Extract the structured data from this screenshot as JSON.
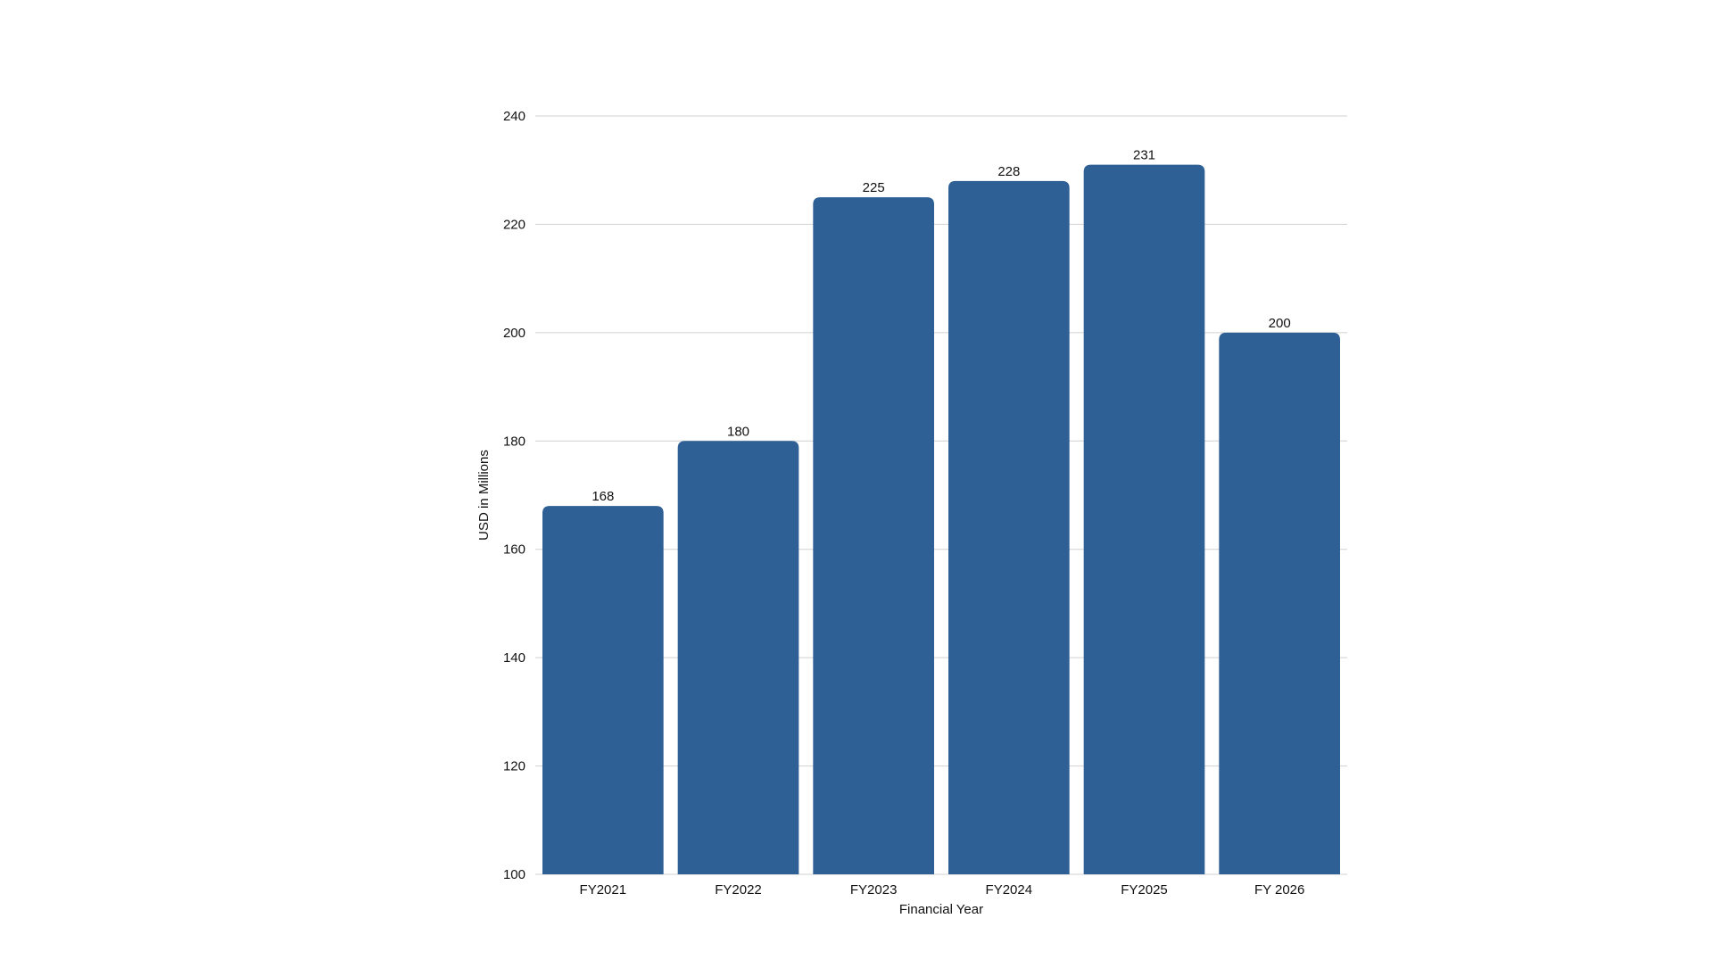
{
  "chart_data": {
    "type": "bar",
    "categories": [
      "FY2021",
      "FY2022",
      "FY2023",
      "FY2024",
      "FY2025",
      "FY 2026"
    ],
    "values": [
      168,
      180,
      225,
      228,
      231,
      200
    ],
    "title": "",
    "xlabel": "Financial Year",
    "ylabel": "USD in Millions",
    "ylim": [
      100,
      240
    ],
    "yticks": [
      100,
      120,
      140,
      160,
      180,
      200,
      220,
      240
    ],
    "grid": true,
    "legend": "none",
    "bar_color": "#2e6096",
    "gridline_color": "#d0d0d0"
  }
}
